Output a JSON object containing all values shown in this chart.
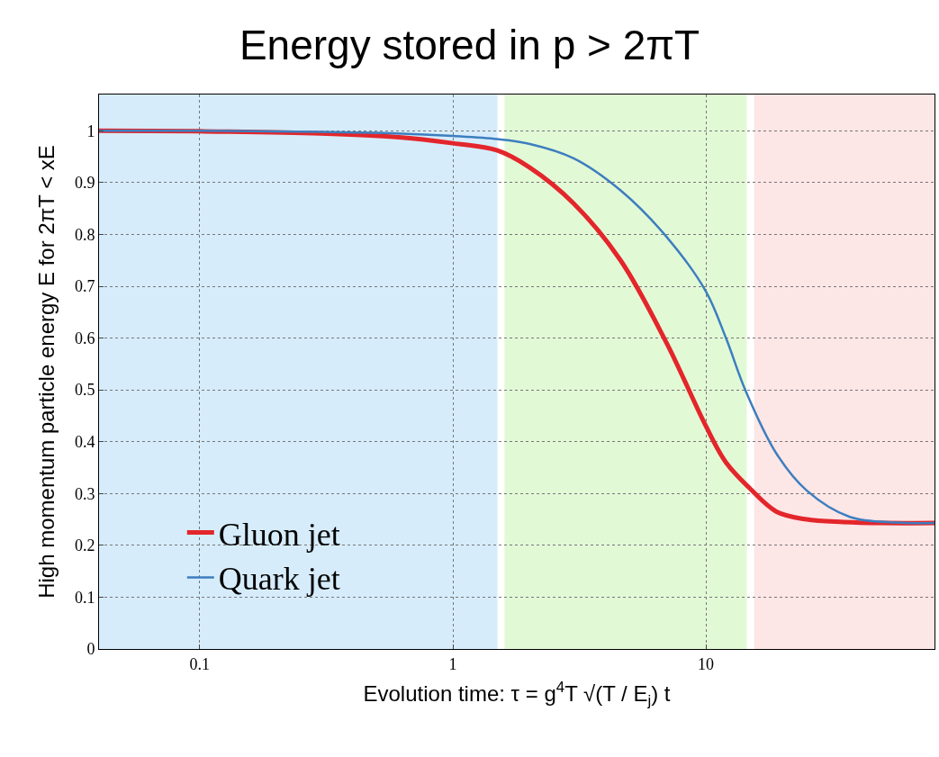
{
  "chart_data": {
    "type": "line",
    "title": "Energy stored in p > 2πT",
    "xlabel": "Evolution time: τ = g$^{4}$T √(T / E$_{j}$) t",
    "ylabel": "High momentum particle energy E for 2πT < xE",
    "log": "x",
    "xlim": [
      0.04,
      80
    ],
    "xticks": [
      0.1,
      1,
      10
    ],
    "ylim": [
      0,
      1.07
    ],
    "yticks": [
      0,
      0.1,
      0.2,
      0.3,
      0.4,
      0.5,
      0.6,
      0.7,
      0.8,
      0.9,
      1
    ],
    "grid": true,
    "line_style": "solid",
    "marker": "none",
    "legend": "bottom left",
    "bands": [
      {
        "axis": "x",
        "from": 0.04,
        "to": 1.5,
        "color": "#d6ecfb"
      },
      {
        "axis": "x",
        "from": 1.6,
        "to": 14.5,
        "color": "#e2f9d6"
      },
      {
        "axis": "x",
        "from": 15.5,
        "to": 80,
        "color": "#fde6e6"
      }
    ],
    "series": [
      {
        "name": "Gluon jet",
        "color": "#e3262b",
        "x": [
          0.04,
          0.1,
          0.3,
          0.6,
          1,
          1.5,
          2,
          3,
          4.6,
          7,
          10,
          12,
          14.9,
          19,
          25,
          35,
          50,
          80
        ],
        "values": [
          1,
          0.999,
          0.995,
          0.988,
          0.976,
          0.962,
          0.93,
          0.86,
          0.75,
          0.59,
          0.43,
          0.36,
          0.31,
          0.265,
          0.25,
          0.245,
          0.243,
          0.243
        ]
      },
      {
        "name": "Quark jet",
        "color": "#3d7ebf",
        "x": [
          0.04,
          0.1,
          0.3,
          0.6,
          1,
          1.5,
          2,
          3,
          4.6,
          7,
          10,
          12,
          14.3,
          19,
          25,
          37,
          57,
          80
        ],
        "values": [
          1,
          1,
          0.998,
          0.995,
          0.99,
          0.984,
          0.975,
          0.947,
          0.885,
          0.795,
          0.69,
          0.6,
          0.5,
          0.377,
          0.306,
          0.255,
          0.244,
          0.243
        ]
      }
    ]
  }
}
